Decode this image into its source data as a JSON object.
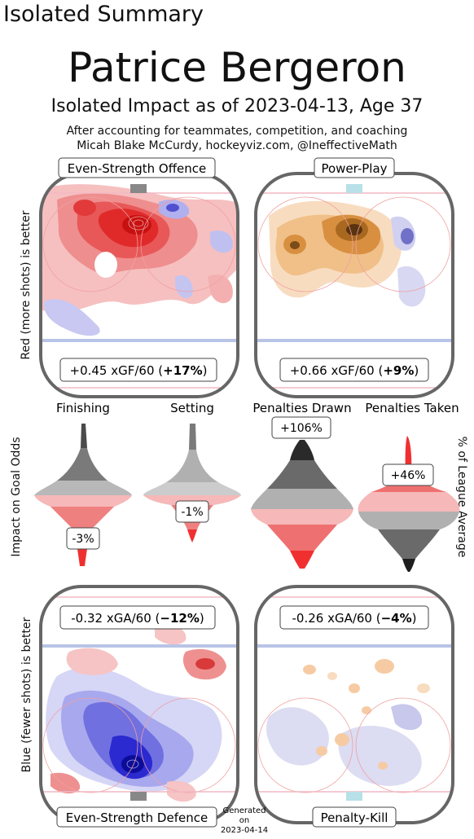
{
  "header": {
    "corner_title": "Isolated Summary",
    "player_name": "Patrice Bergeron",
    "subtitle": "Isolated Impact as of 2023-04-13, Age 37",
    "line1": "After accounting for teammates, competition, and coaching",
    "line2": "Micah Blake McCurdy, hockeyviz.com, @IneffectiveMath"
  },
  "side_labels": {
    "top_left": "Red (more shots) is better",
    "middle_left": "Impact on Goal Odds",
    "middle_right": "% of League Average",
    "bottom_left": "Blue (fewer shots) is better"
  },
  "generated": {
    "line1": "Generated",
    "line2": "on",
    "line3": "2023-04-14"
  },
  "chart_data": [
    {
      "type": "heatmap",
      "title": "Even-Strength Offence",
      "stat_label": "+0.45 xGF/60",
      "pct_label": "+17%",
      "value": 0.45,
      "unit": "xGF/60",
      "pct": 17,
      "colors": {
        "positive": "#e0202a",
        "negative": "#3030c8"
      }
    },
    {
      "type": "heatmap",
      "title": "Power-Play",
      "stat_label": "+0.66 xGF/60",
      "pct_label": "+9%",
      "value": 0.66,
      "unit": "xGF/60",
      "pct": 9,
      "colors": {
        "positive": "#e08a20",
        "negative": "#5050b0"
      }
    },
    {
      "type": "heatmap",
      "title": "Even-Strength Defence",
      "stat_label": "-0.32 xGA/60",
      "pct_label": "−12%",
      "value": -0.32,
      "unit": "xGA/60",
      "pct": -12,
      "colors": {
        "positive": "#e0202a",
        "negative": "#1818d0"
      }
    },
    {
      "type": "heatmap",
      "title": "Penalty-Kill",
      "stat_label": "-0.26 xGA/60",
      "pct_label": "−4%",
      "value": -0.26,
      "unit": "xGA/60",
      "pct": -4,
      "colors": {
        "positive": "#e08a20",
        "negative": "#5050b0"
      }
    },
    {
      "type": "violin",
      "categories": [
        "Finishing",
        "Setting",
        "Penalties Drawn",
        "Penalties Taken"
      ],
      "values": [
        -3,
        -1,
        106,
        46
      ],
      "labels": [
        "-3%",
        "-1%",
        "+106%",
        "+46%"
      ]
    }
  ]
}
